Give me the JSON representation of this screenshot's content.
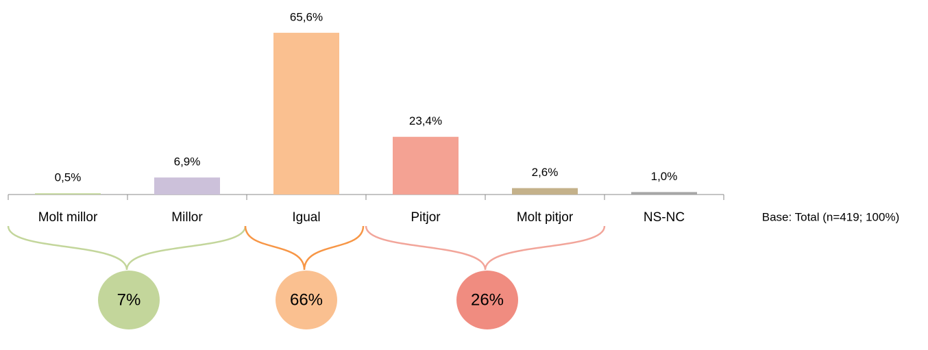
{
  "chart_data": {
    "type": "bar",
    "categories": [
      "Molt millor",
      "Millor",
      "Igual",
      "Pitjor",
      "Molt pitjor",
      "NS-NC"
    ],
    "values": [
      0.5,
      6.9,
      65.6,
      23.4,
      2.6,
      1.0
    ],
    "value_labels": [
      "0,5%",
      "6,9%",
      "65,6%",
      "23,4%",
      "2,6%",
      "1,0%"
    ],
    "colors": [
      "#c3d69b",
      "#ccc1da",
      "#fac090",
      "#f4a293",
      "#c4b18a",
      "#a6a6a6"
    ],
    "ylim": [
      0,
      70
    ],
    "groups": {
      "values": [
        7,
        66,
        26
      ],
      "value_labels": [
        "7%",
        "66%",
        "26%"
      ],
      "brace_colors": [
        "#c3d69b",
        "#f79646",
        "#f2a59a"
      ],
      "circle_colors": [
        "#c3d69b",
        "#fac090",
        "#f08c80"
      ]
    },
    "note": "Base: Total (n=419; 100%)"
  }
}
